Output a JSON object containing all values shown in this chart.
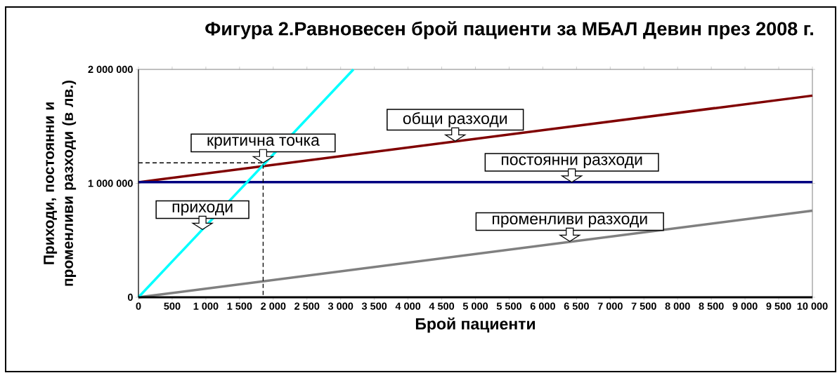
{
  "chart_data": {
    "type": "line",
    "title": "Фигура 2.Равновесен брой пациенти за МБАЛ Девин през 2008 г.",
    "xlabel": "Брой пациенти",
    "ylabel": "Приходи, постоянни и променливи разходи (в лв.)",
    "series": [
      {
        "color": "#800000",
        "x": [
          0,
          10000
        ],
        "values": [
          1010000,
          1770000
        ]
      },
      {
        "color": "#000080",
        "x": [
          0,
          10000
        ],
        "values": [
          1010000,
          1010000
        ]
      },
      {
        "color": "#808080",
        "x": [
          0,
          10000
        ],
        "values": [
          0,
          760000
        ]
      },
      {
        "color": "#00ffff",
        "x": [
          0,
          3190
        ],
        "values": [
          0,
          2000000
        ]
      },
      {
        "color": "#000000",
        "x": [
          0,
          1850,
          1850
        ],
        "values": [
          1180000,
          1180000,
          0
        ],
        "line_style": "dashed"
      }
    ],
    "annotations": [
      {
        "text": "критична точка",
        "x": 1850,
        "y": 1180000
      },
      {
        "text": "общи разходи",
        "x": 4700,
        "y": 1370000
      },
      {
        "text": "постоянни разходи",
        "x": 6430,
        "y": 1010000
      },
      {
        "text": "приходи",
        "x": 950,
        "y": 595000
      },
      {
        "text": "променливи разходи",
        "x": 6400,
        "y": 490000
      }
    ],
    "xlim": [
      0,
      10000
    ],
    "ylim": [
      0,
      2000000
    ],
    "xticks": [
      0,
      500,
      {
        "value": 1000,
        "label": "1 000"
      },
      {
        "value": 1500,
        "label": "1 500"
      },
      {
        "value": 2000,
        "label": "2 000"
      },
      {
        "value": 2500,
        "label": "2 500"
      },
      {
        "value": 3000,
        "label": "3 000"
      },
      {
        "value": 3500,
        "label": "3 500"
      },
      {
        "value": 4000,
        "label": "4 000"
      },
      {
        "value": 4500,
        "label": "4 500"
      },
      {
        "value": 5000,
        "label": "5 000"
      },
      {
        "value": 5500,
        "label": "5 500"
      },
      {
        "value": 6000,
        "label": "6 000"
      },
      {
        "value": 6500,
        "label": "6 500"
      },
      {
        "value": 7000,
        "label": "7 000"
      },
      {
        "value": 7500,
        "label": "7 500"
      },
      {
        "value": 8000,
        "label": "8 000"
      },
      {
        "value": 8500,
        "label": "8 500"
      },
      {
        "value": 9000,
        "label": "9 000"
      },
      {
        "value": 9500,
        "label": "9 500"
      },
      {
        "value": 10000,
        "label": "10 000"
      }
    ],
    "yticks": [
      0,
      {
        "value": 1000000,
        "label": "1 000 000"
      },
      {
        "value": 2000000,
        "label": "2 000 000"
      }
    ],
    "grid": false,
    "marker": "none",
    "line_style": "solid"
  }
}
